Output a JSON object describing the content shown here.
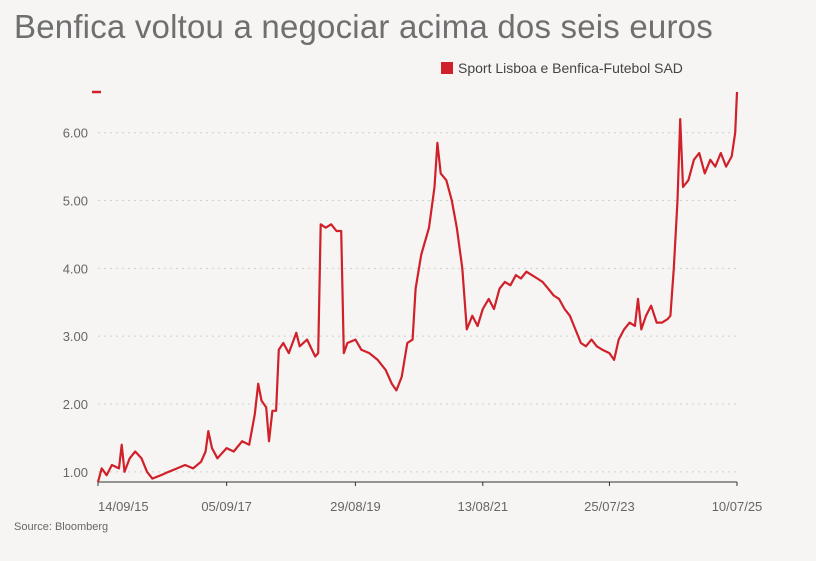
{
  "title": "Benfica voltou a negociar acima dos seis euros",
  "source": "Source: Bloomberg",
  "colors": {
    "series": "#d0202a",
    "grid": "#cfcfcf",
    "axis": "#333333"
  },
  "chart_data": {
    "type": "line",
    "title": "Benfica voltou a negociar acima dos seis euros",
    "xlabel": "",
    "ylabel": "",
    "ylim": [
      0.85,
      6.6
    ],
    "y_ticks": [
      1.0,
      2.0,
      3.0,
      4.0,
      5.0,
      6.0
    ],
    "y_tick_labels": [
      "1.00",
      "2.00",
      "3.00",
      "4.00",
      "5.00",
      "6.00"
    ],
    "x_ticks": [
      "2015-09-14",
      "2017-09-05",
      "2019-08-29",
      "2021-08-13",
      "2023-07-25",
      "2025-07-10"
    ],
    "x_tick_labels": [
      "14/09/15",
      "05/09/17",
      "29/08/19",
      "13/08/21",
      "25/07/23",
      "10/07/25"
    ],
    "grid": true,
    "legend_position": "top-right",
    "series": [
      {
        "name": "Sport Lisboa e Benfica-Futebol SAD",
        "points": [
          [
            "2015-09-14",
            0.85
          ],
          [
            "2015-10-05",
            1.05
          ],
          [
            "2015-11-01",
            0.95
          ],
          [
            "2015-12-01",
            1.1
          ],
          [
            "2016-01-10",
            1.05
          ],
          [
            "2016-01-25",
            1.4
          ],
          [
            "2016-02-10",
            1.0
          ],
          [
            "2016-03-10",
            1.2
          ],
          [
            "2016-04-10",
            1.3
          ],
          [
            "2016-05-15",
            1.2
          ],
          [
            "2016-06-15",
            1.0
          ],
          [
            "2016-07-15",
            0.9
          ],
          [
            "2016-09-01",
            0.95
          ],
          [
            "2016-10-15",
            1.0
          ],
          [
            "2016-12-01",
            1.05
          ],
          [
            "2017-01-15",
            1.1
          ],
          [
            "2017-03-01",
            1.05
          ],
          [
            "2017-04-15",
            1.15
          ],
          [
            "2017-05-10",
            1.3
          ],
          [
            "2017-05-25",
            1.6
          ],
          [
            "2017-06-15",
            1.35
          ],
          [
            "2017-07-15",
            1.2
          ],
          [
            "2017-09-05",
            1.35
          ],
          [
            "2017-10-15",
            1.3
          ],
          [
            "2017-12-01",
            1.45
          ],
          [
            "2018-01-10",
            1.4
          ],
          [
            "2018-02-10",
            1.85
          ],
          [
            "2018-03-01",
            2.3
          ],
          [
            "2018-03-20",
            2.05
          ],
          [
            "2018-04-15",
            1.95
          ],
          [
            "2018-05-01",
            1.45
          ],
          [
            "2018-05-20",
            1.9
          ],
          [
            "2018-06-10",
            1.9
          ],
          [
            "2018-06-25",
            2.8
          ],
          [
            "2018-07-20",
            2.9
          ],
          [
            "2018-08-20",
            2.75
          ],
          [
            "2018-10-01",
            3.05
          ],
          [
            "2018-10-20",
            2.85
          ],
          [
            "2018-12-01",
            2.95
          ],
          [
            "2019-01-15",
            2.7
          ],
          [
            "2019-02-01",
            2.75
          ],
          [
            "2019-02-15",
            4.65
          ],
          [
            "2019-03-15",
            4.6
          ],
          [
            "2019-04-15",
            4.65
          ],
          [
            "2019-05-15",
            4.55
          ],
          [
            "2019-06-10",
            4.55
          ],
          [
            "2019-06-25",
            2.75
          ],
          [
            "2019-07-15",
            2.9
          ],
          [
            "2019-08-29",
            2.95
          ],
          [
            "2019-10-01",
            2.8
          ],
          [
            "2019-11-15",
            2.75
          ],
          [
            "2020-01-01",
            2.65
          ],
          [
            "2020-02-15",
            2.5
          ],
          [
            "2020-03-20",
            2.3
          ],
          [
            "2020-04-15",
            2.2
          ],
          [
            "2020-05-15",
            2.4
          ],
          [
            "2020-06-15",
            2.9
          ],
          [
            "2020-07-15",
            2.95
          ],
          [
            "2020-08-01",
            3.7
          ],
          [
            "2020-09-01",
            4.2
          ],
          [
            "2020-10-15",
            4.6
          ],
          [
            "2020-11-15",
            5.2
          ],
          [
            "2020-12-01",
            5.85
          ],
          [
            "2020-12-20",
            5.4
          ],
          [
            "2021-01-20",
            5.3
          ],
          [
            "2021-02-20",
            5.0
          ],
          [
            "2021-03-20",
            4.6
          ],
          [
            "2021-04-20",
            4.0
          ],
          [
            "2021-05-15",
            3.1
          ],
          [
            "2021-06-15",
            3.3
          ],
          [
            "2021-07-15",
            3.15
          ],
          [
            "2021-08-13",
            3.4
          ],
          [
            "2021-09-15",
            3.55
          ],
          [
            "2021-10-15",
            3.4
          ],
          [
            "2021-11-15",
            3.7
          ],
          [
            "2021-12-15",
            3.8
          ],
          [
            "2022-01-15",
            3.75
          ],
          [
            "2022-02-15",
            3.9
          ],
          [
            "2022-03-15",
            3.85
          ],
          [
            "2022-04-15",
            3.95
          ],
          [
            "2022-05-15",
            3.9
          ],
          [
            "2022-06-15",
            3.85
          ],
          [
            "2022-07-15",
            3.8
          ],
          [
            "2022-08-15",
            3.7
          ],
          [
            "2022-09-15",
            3.6
          ],
          [
            "2022-10-15",
            3.55
          ],
          [
            "2022-11-15",
            3.4
          ],
          [
            "2022-12-15",
            3.3
          ],
          [
            "2023-01-15",
            3.1
          ],
          [
            "2023-02-15",
            2.9
          ],
          [
            "2023-03-15",
            2.85
          ],
          [
            "2023-04-15",
            2.95
          ],
          [
            "2023-05-15",
            2.85
          ],
          [
            "2023-06-15",
            2.8
          ],
          [
            "2023-07-25",
            2.75
          ],
          [
            "2023-08-20",
            2.65
          ],
          [
            "2023-09-15",
            2.95
          ],
          [
            "2023-10-15",
            3.1
          ],
          [
            "2023-11-15",
            3.2
          ],
          [
            "2023-12-15",
            3.15
          ],
          [
            "2024-01-01",
            3.55
          ],
          [
            "2024-01-20",
            3.1
          ],
          [
            "2024-02-15",
            3.3
          ],
          [
            "2024-03-15",
            3.45
          ],
          [
            "2024-04-15",
            3.2
          ],
          [
            "2024-05-15",
            3.2
          ],
          [
            "2024-06-15",
            3.25
          ],
          [
            "2024-07-01",
            3.3
          ],
          [
            "2024-07-20",
            4.0
          ],
          [
            "2024-08-10",
            5.0
          ],
          [
            "2024-08-25",
            6.2
          ],
          [
            "2024-09-10",
            5.2
          ],
          [
            "2024-10-10",
            5.3
          ],
          [
            "2024-11-10",
            5.6
          ],
          [
            "2024-12-10",
            5.7
          ],
          [
            "2025-01-10",
            5.4
          ],
          [
            "2025-02-10",
            5.6
          ],
          [
            "2025-03-10",
            5.5
          ],
          [
            "2025-04-10",
            5.7
          ],
          [
            "2025-05-10",
            5.5
          ],
          [
            "2025-06-10",
            5.65
          ],
          [
            "2025-06-30",
            6.0
          ],
          [
            "2025-07-10",
            6.6
          ]
        ]
      }
    ]
  }
}
